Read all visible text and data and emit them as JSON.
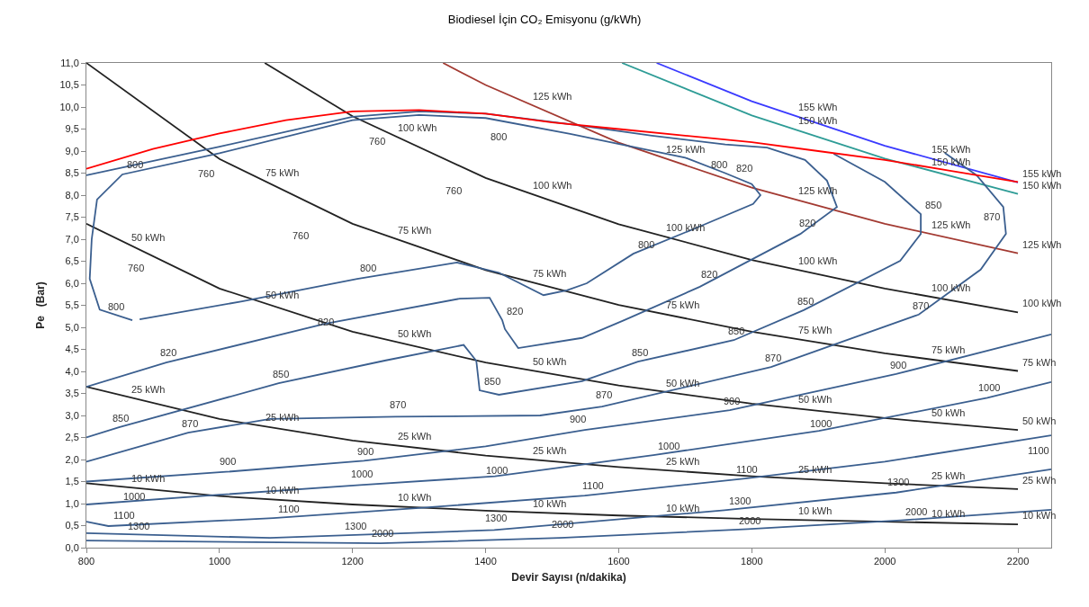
{
  "chart_data": {
    "type": "line",
    "title": "Biodiesel İçin CO₂ Emisyonu (g/kWh)",
    "xlabel": "Devir Sayısı (n/dakika)",
    "ylabel": "Pe   (Bar)",
    "xlim": [
      800,
      2250
    ],
    "ylim": [
      0,
      11
    ],
    "xticks": [
      800,
      1000,
      1200,
      1400,
      1600,
      1800,
      2000,
      2200
    ],
    "yticks": [
      {
        "value": 0,
        "label": "0,0"
      },
      {
        "value": 0.5,
        "label": "0,5"
      },
      {
        "value": 1,
        "label": "1,0"
      },
      {
        "value": 1.5,
        "label": "1,5"
      },
      {
        "value": 2,
        "label": "2,0"
      },
      {
        "value": 2.5,
        "label": "2,5"
      },
      {
        "value": 3,
        "label": "3,0"
      },
      {
        "value": 3.5,
        "label": "3,5"
      },
      {
        "value": 4,
        "label": "4,0"
      },
      {
        "value": 4.5,
        "label": "4,5"
      },
      {
        "value": 5,
        "label": "5,0"
      },
      {
        "value": 5.5,
        "label": "5,5"
      },
      {
        "value": 6,
        "label": "6,0"
      },
      {
        "value": 6.5,
        "label": "6,5"
      },
      {
        "value": 7,
        "label": "7,0"
      },
      {
        "value": 7.5,
        "label": "7,5"
      },
      {
        "value": 8,
        "label": "8,0"
      },
      {
        "value": 8.5,
        "label": "8,5"
      },
      {
        "value": 9,
        "label": "9,0"
      },
      {
        "value": 9.5,
        "label": "9,5"
      },
      {
        "value": 10,
        "label": "10,0"
      },
      {
        "value": 10.5,
        "label": "10,5"
      },
      {
        "value": 11,
        "label": "11,0"
      }
    ],
    "grid": false,
    "marker": "none",
    "line_style": "solid",
    "series": [
      {
        "color": "#222222",
        "x": [
          800,
          1000,
          1200,
          1400,
          1600,
          1800,
          2000,
          2200
        ],
        "values": [
          1.46,
          1.17,
          0.98,
          0.84,
          0.73,
          0.65,
          0.59,
          0.53
        ]
      },
      {
        "color": "#222222",
        "x": [
          800,
          1000,
          1200,
          1400,
          1600,
          1800,
          2000,
          2200
        ],
        "values": [
          3.65,
          2.92,
          2.43,
          2.09,
          1.83,
          1.62,
          1.46,
          1.33
        ]
      },
      {
        "color": "#222222",
        "x": [
          800,
          1000,
          1200,
          1400,
          1600,
          1800,
          2000,
          2200
        ],
        "values": [
          7.35,
          5.88,
          4.9,
          4.2,
          3.68,
          3.27,
          2.94,
          2.67
        ]
      },
      {
        "color": "#222222",
        "x": [
          800,
          1000,
          1200,
          1400,
          1600,
          1800,
          2000,
          2200
        ],
        "values": [
          11.0,
          8.82,
          7.35,
          6.3,
          5.51,
          4.9,
          4.41,
          4.01
        ]
      },
      {
        "color": "#222222",
        "x": [
          1068,
          1200,
          1400,
          1600,
          1800,
          2000,
          2200
        ],
        "values": [
          11.0,
          9.79,
          8.39,
          7.34,
          6.53,
          5.88,
          5.34
        ]
      },
      {
        "color": "#a33a32",
        "x": [
          1336,
          1400,
          1600,
          1800,
          2000,
          2200
        ],
        "values": [
          11.0,
          10.5,
          9.19,
          8.17,
          7.35,
          6.68
        ]
      },
      {
        "color": "#2e9c96",
        "x": [
          1605,
          1800,
          2000,
          2200
        ],
        "values": [
          11.0,
          9.81,
          8.83,
          8.03
        ]
      },
      {
        "color": "#3a3aff",
        "x": [
          1657,
          1800,
          2000,
          2200
        ],
        "values": [
          11.0,
          10.13,
          9.12,
          8.29
        ]
      },
      {
        "color": "#3b5f8f",
        "x": [
          869,
          820,
          805,
          808,
          816,
          854,
          1000,
          1200,
          1300,
          1400,
          1527,
          1700,
          1760,
          1800,
          1813,
          1802,
          1722,
          1622,
          1552,
          1522,
          1487,
          1420,
          1357,
          1207,
          1034,
          880
        ],
        "values": [
          5.16,
          5.4,
          6.1,
          7.0,
          7.9,
          8.47,
          8.95,
          9.7,
          9.82,
          9.75,
          9.39,
          8.85,
          8.5,
          8.25,
          8.0,
          7.8,
          7.29,
          6.67,
          6.0,
          5.84,
          5.73,
          6.24,
          6.47,
          6.1,
          5.59,
          5.18
        ]
      },
      {
        "color": "#3b5f8f",
        "x": [
          800,
          1000,
          1200,
          1300,
          1400,
          1527,
          1650,
          1760,
          1823,
          1880,
          1913,
          1928,
          1873,
          1722,
          1608,
          1545,
          1449,
          1429,
          1425,
          1406,
          1361,
          1158,
          920,
          800
        ],
        "values": [
          8.45,
          9.1,
          9.78,
          9.9,
          9.85,
          9.61,
          9.35,
          9.15,
          9.08,
          8.8,
          8.33,
          7.73,
          7.12,
          5.92,
          5.16,
          4.76,
          4.53,
          4.96,
          5.16,
          5.67,
          5.65,
          5.08,
          4.2,
          3.65
        ]
      },
      {
        "color": "#3b5f8f",
        "x": [
          800,
          849,
          1089,
          1250,
          1367,
          1386,
          1391,
          1420,
          1545,
          1629,
          1773,
          1878,
          2023,
          2054,
          2054,
          2000,
          1923
        ],
        "values": [
          2.5,
          2.73,
          3.73,
          4.25,
          4.6,
          4.24,
          3.57,
          3.47,
          3.78,
          4.22,
          4.71,
          5.39,
          6.51,
          7.12,
          7.57,
          8.3,
          8.94
        ]
      },
      {
        "color": "#3b5f8f",
        "x": [
          800,
          953,
          1076,
          1265,
          1482,
          1575,
          1829,
          2051,
          2144,
          2182,
          2178,
          2138,
          2090
        ],
        "values": [
          1.95,
          2.61,
          2.92,
          2.97,
          3.0,
          3.2,
          4.1,
          5.29,
          6.31,
          7.12,
          7.73,
          8.45,
          8.96
        ]
      },
      {
        "color": "#3b5f8f",
        "x": [
          800,
          1010,
          1217,
          1400,
          1549,
          1767,
          2017,
          2250
        ],
        "values": [
          1.5,
          1.72,
          1.97,
          2.3,
          2.67,
          3.12,
          3.94,
          4.84
        ]
      },
      {
        "color": "#3b5f8f",
        "x": [
          800,
          1000,
          1211,
          1414,
          1652,
          1901,
          2154,
          2250
        ],
        "values": [
          0.98,
          1.2,
          1.42,
          1.62,
          2.1,
          2.65,
          3.4,
          3.76
        ]
      },
      {
        "color": "#3b5f8f",
        "x": [
          800,
          833,
          1081,
          1300,
          1549,
          1790,
          2000,
          2250
        ],
        "values": [
          0.59,
          0.49,
          0.67,
          0.9,
          1.18,
          1.57,
          1.95,
          2.55
        ]
      },
      {
        "color": "#3b5f8f",
        "x": [
          800,
          1076,
          1413,
          1759,
          2017,
          2250
        ],
        "values": [
          0.33,
          0.22,
          0.4,
          0.85,
          1.25,
          1.78
        ]
      },
      {
        "color": "#3b5f8f",
        "x": [
          800,
          1242,
          1512,
          1794,
          2024,
          2250
        ],
        "values": [
          0.16,
          0.1,
          0.22,
          0.42,
          0.62,
          0.86
        ]
      },
      {
        "color": "#ff0000",
        "x": [
          800,
          900,
          1000,
          1100,
          1200,
          1300,
          1400,
          1500,
          1600,
          1700,
          1800,
          1900,
          2000,
          2100,
          2200
        ],
        "values": [
          8.6,
          9.05,
          9.4,
          9.7,
          9.9,
          9.93,
          9.85,
          9.65,
          9.5,
          9.35,
          9.2,
          9.0,
          8.8,
          8.55,
          8.3
        ]
      }
    ],
    "annotations": [
      {
        "text": "10 kWh",
        "x": 861,
        "y": 1.36
      },
      {
        "text": "10 kWh",
        "x": 1062,
        "y": 1.1
      },
      {
        "text": "10 kWh",
        "x": 1261,
        "y": 0.93
      },
      {
        "text": "10 kWh",
        "x": 1464,
        "y": 0.8
      },
      {
        "text": "10 kWh",
        "x": 1664,
        "y": 0.7
      },
      {
        "text": "10 kWh",
        "x": 1863,
        "y": 0.63
      },
      {
        "text": "10 kWh",
        "x": 2063,
        "y": 0.57
      },
      {
        "text": "10 kWh",
        "x": 2200,
        "y": 0.53
      },
      {
        "text": "25 kWh",
        "x": 861,
        "y": 3.39
      },
      {
        "text": "25 kWh",
        "x": 1062,
        "y": 2.75
      },
      {
        "text": "25 kWh",
        "x": 1261,
        "y": 2.32
      },
      {
        "text": "25 kWh",
        "x": 1464,
        "y": 1.99
      },
      {
        "text": "25 kWh",
        "x": 1664,
        "y": 1.75
      },
      {
        "text": "25 kWh",
        "x": 1863,
        "y": 1.57
      },
      {
        "text": "25 kWh",
        "x": 2063,
        "y": 1.42
      },
      {
        "text": "25 kWh",
        "x": 2200,
        "y": 1.33
      },
      {
        "text": "50 kWh",
        "x": 861,
        "y": 6.83
      },
      {
        "text": "50 kWh",
        "x": 1062,
        "y": 5.54
      },
      {
        "text": "50 kWh",
        "x": 1261,
        "y": 4.66
      },
      {
        "text": "50 kWh",
        "x": 1464,
        "y": 4.02
      },
      {
        "text": "50 kWh",
        "x": 1664,
        "y": 3.53
      },
      {
        "text": "50 kWh",
        "x": 1863,
        "y": 3.16
      },
      {
        "text": "50 kWh",
        "x": 2063,
        "y": 2.85
      },
      {
        "text": "50 kWh",
        "x": 2200,
        "y": 2.67
      },
      {
        "text": "75 kWh",
        "x": 1062,
        "y": 8.31
      },
      {
        "text": "75 kWh",
        "x": 1261,
        "y": 6.99
      },
      {
        "text": "75 kWh",
        "x": 1464,
        "y": 6.02
      },
      {
        "text": "75 kWh",
        "x": 1664,
        "y": 5.3
      },
      {
        "text": "75 kWh",
        "x": 1863,
        "y": 4.73
      },
      {
        "text": "75 kWh",
        "x": 2063,
        "y": 4.28
      },
      {
        "text": "75 kWh",
        "x": 2200,
        "y": 4.01
      },
      {
        "text": "100 kWh",
        "x": 1261,
        "y": 9.32
      },
      {
        "text": "100 kWh",
        "x": 1464,
        "y": 8.03
      },
      {
        "text": "100 kWh",
        "x": 1664,
        "y": 7.06
      },
      {
        "text": "100 kWh",
        "x": 1863,
        "y": 6.31
      },
      {
        "text": "100 kWh",
        "x": 2063,
        "y": 5.7
      },
      {
        "text": "100 kWh",
        "x": 2200,
        "y": 5.34
      },
      {
        "text": "125 kWh",
        "x": 1464,
        "y": 10.04
      },
      {
        "text": "125 kWh",
        "x": 1664,
        "y": 8.83
      },
      {
        "text": "125 kWh",
        "x": 1863,
        "y": 7.89
      },
      {
        "text": "125 kWh",
        "x": 2063,
        "y": 7.13
      },
      {
        "text": "125 kWh",
        "x": 2200,
        "y": 6.68
      },
      {
        "text": "150 kWh",
        "x": 1863,
        "y": 9.48
      },
      {
        "text": "150 kWh",
        "x": 2063,
        "y": 8.56
      },
      {
        "text": "150 kWh",
        "x": 2200,
        "y": 8.03
      },
      {
        "text": "155 kWh",
        "x": 1863,
        "y": 9.79
      },
      {
        "text": "155 kWh",
        "x": 2063,
        "y": 8.84
      },
      {
        "text": "155 kWh",
        "x": 2200,
        "y": 8.29
      },
      {
        "text": "800",
        "x": 854,
        "y": 8.49
      },
      "800",
      {
        "text": "800",
        "x": 1732,
        "y": 8.49
      },
      {
        "text": "800",
        "x": 1622,
        "y": 6.67
      },
      {
        "text": "800",
        "x": 1205,
        "y": 6.14
      },
      {
        "text": "800",
        "x": 826,
        "y": 5.27
      },
      "760",
      "760",
      "760",
      "760",
      "760",
      "820",
      {
        "text": "820",
        "x": 1865,
        "y": 7.16
      },
      {
        "text": "820",
        "x": 1717,
        "y": 6.0
      },
      {
        "text": "820",
        "x": 1141,
        "y": 4.92
      },
      {
        "text": "820",
        "x": 1425,
        "y": 5.16
      },
      {
        "text": "820",
        "x": 904,
        "y": 4.22
      },
      {
        "text": "850",
        "x": 2054,
        "y": 7.57
      },
      {
        "text": "850",
        "x": 1862,
        "y": 5.39
      },
      {
        "text": "850",
        "x": 1757,
        "y": 4.71
      },
      {
        "text": "850",
        "x": 1613,
        "y": 4.22
      },
      {
        "text": "850",
        "x": 1391,
        "y": 3.57
      },
      {
        "text": "850",
        "x": 1073,
        "y": 3.73
      },
      {
        "text": "850",
        "x": 833,
        "y": 2.73
      },
      "870",
      {
        "text": "870",
        "x": 2035,
        "y": 5.29
      },
      {
        "text": "870",
        "x": 1813,
        "y": 4.1
      },
      {
        "text": "870",
        "x": 1559,
        "y": 3.27
      },
      {
        "text": "870",
        "x": 1249,
        "y": 3.04
      },
      {
        "text": "870",
        "x": 937,
        "y": 2.61
      },
      {
        "text": "900",
        "x": 2001,
        "y": 3.94
      },
      {
        "text": "900",
        "x": 1751,
        "y": 3.12
      },
      {
        "text": "900",
        "x": 1519,
        "y": 2.71
      },
      {
        "text": "900",
        "x": 1201,
        "y": 1.98
      },
      {
        "text": "900",
        "x": 994,
        "y": 1.76
      },
      {
        "text": "1000",
        "x": 2134,
        "y": 3.43
      },
      {
        "text": "1000",
        "x": 1881,
        "y": 2.61
      },
      {
        "text": "1000",
        "x": 1652,
        "y": 2.1
      },
      {
        "text": "1000",
        "x": 1394,
        "y": 1.55
      },
      {
        "text": "1000",
        "x": 1191,
        "y": 1.47
      },
      {
        "text": "1000",
        "x": 849,
        "y": 0.96
      },
      "1100",
      {
        "text": "1100",
        "x": 1770,
        "y": 1.57
      },
      {
        "text": "1100",
        "x": 1539,
        "y": 1.2
      },
      {
        "text": "1100",
        "x": 1081,
        "y": 0.67
      },
      {
        "text": "1100",
        "x": 834,
        "y": 0.53
      },
      {
        "text": "1300",
        "x": 1997,
        "y": 1.29
      },
      {
        "text": "1300",
        "x": 1759,
        "y": 0.85
      },
      {
        "text": "1300",
        "x": 1393,
        "y": 0.47
      },
      "1300",
      {
        "text": "1300",
        "x": 856,
        "y": 0.29
      },
      {
        "text": "2000",
        "x": 2024,
        "y": 0.62
      },
      {
        "text": "2000",
        "x": 1774,
        "y": 0.41
      },
      {
        "text": "2000",
        "x": 1492,
        "y": 0.33
      },
      {
        "text": "2000",
        "x": 1222,
        "y": 0.12
      }
    ]
  }
}
